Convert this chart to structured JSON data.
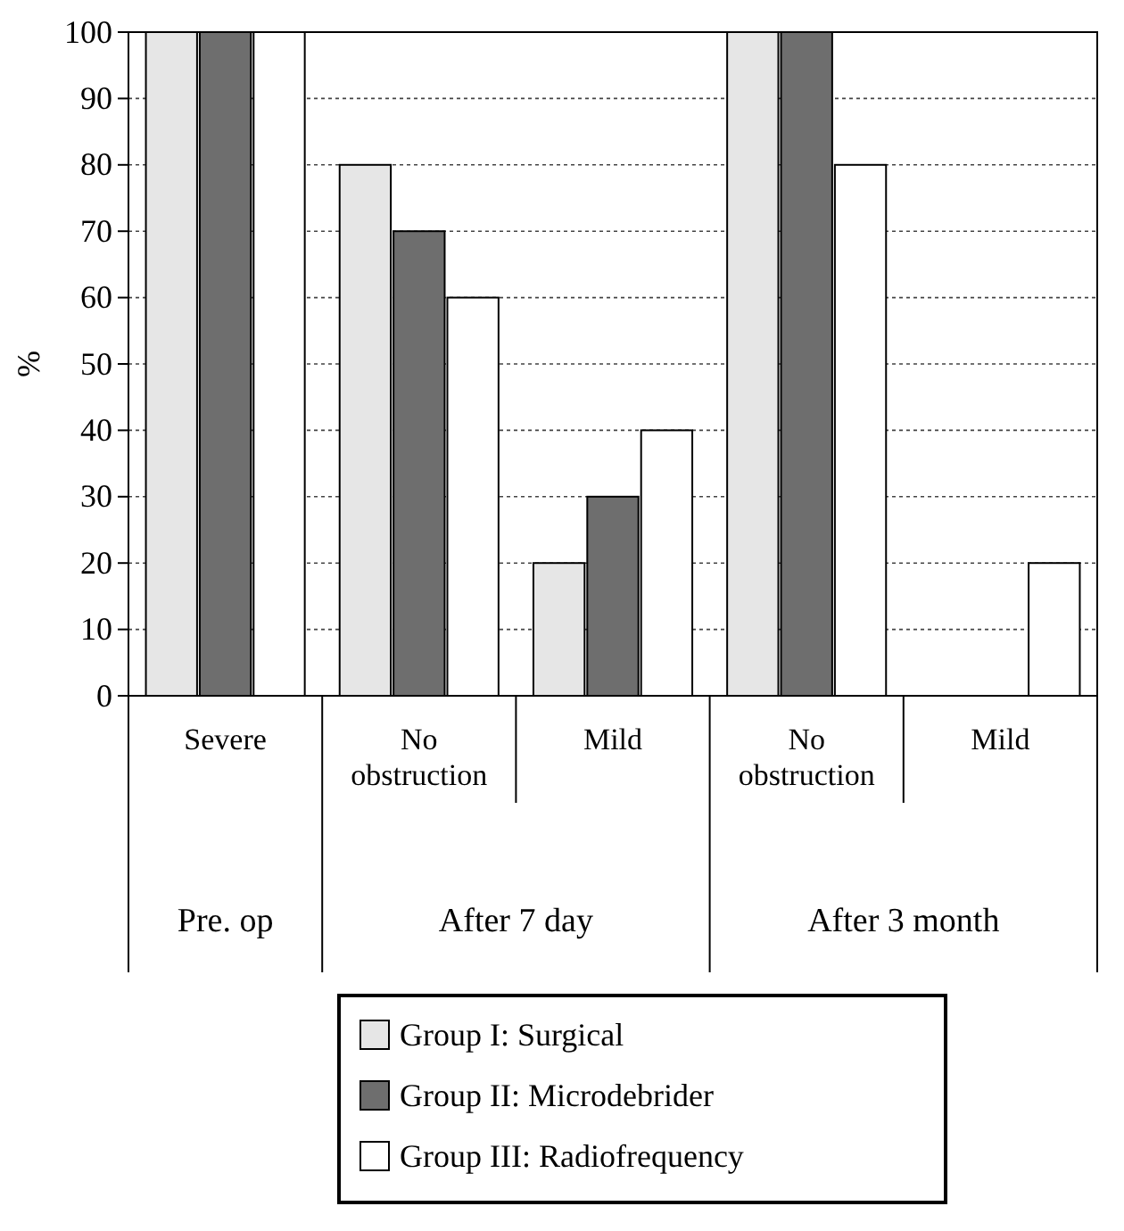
{
  "chart_data": {
    "type": "bar",
    "ylabel": "%",
    "categories": [
      "Severe",
      "No obstruction",
      "Mild",
      "No obstruction",
      "Mild"
    ],
    "series": [
      {
        "name": "Group I: Surgical",
        "color": "#e6e6e6",
        "values": [
          100,
          80,
          20,
          100,
          0
        ]
      },
      {
        "name": "Group II: Microdebrider",
        "color": "#6e6e6e",
        "values": [
          100,
          70,
          30,
          100,
          0
        ]
      },
      {
        "name": "Group III: Radiofrequency",
        "color": "#ffffff",
        "values": [
          100,
          60,
          40,
          80,
          20
        ]
      }
    ],
    "annotations": [
      "Pre. op",
      "After 7 day",
      "After 3 month"
    ],
    "ylim": [
      0,
      100
    ],
    "yticks": [
      0,
      10,
      20,
      30,
      40,
      50,
      60,
      70,
      80,
      90,
      100
    ],
    "grid": "y",
    "legend": "bottom"
  }
}
